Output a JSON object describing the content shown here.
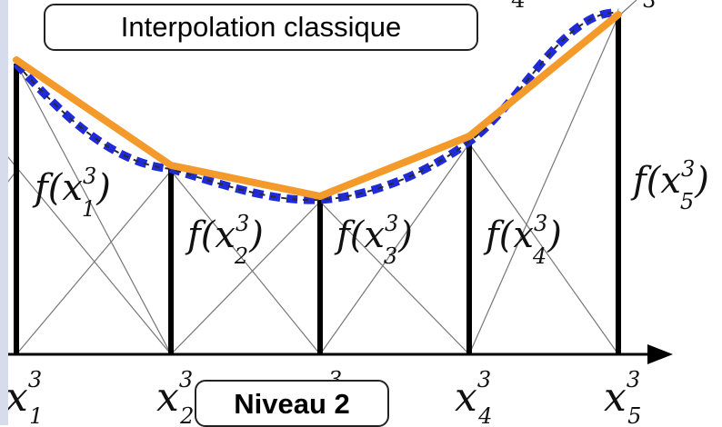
{
  "labels": {
    "title": "Interpolation classique",
    "level": "Niveau 2"
  },
  "nodes": [
    {
      "x": "x",
      "sup": "3",
      "sub": "1",
      "f": "f(x",
      "f_close": ")"
    },
    {
      "x": "x",
      "sup": "3",
      "sub": "2",
      "f": "f(x",
      "f_close": ")"
    },
    {
      "x": "x",
      "sup": "3",
      "sub": "3",
      "f": "f(x",
      "f_close": ")"
    },
    {
      "x": "x",
      "sup": "3",
      "sub": "4",
      "f": "f(x",
      "f_close": ")"
    },
    {
      "x": "x",
      "sup": "3",
      "sub": "5",
      "f": "f(x",
      "f_close": ")"
    }
  ],
  "colors": {
    "linear_interpolation": "#f39a2a",
    "smooth_curve": "#1f2bd9",
    "stems": "#000000",
    "hat_lines": "#777777",
    "left_strip": "#d7dcec"
  },
  "line_styles": {
    "linear_interpolation": "solid",
    "smooth_curve": "dotted-dashed"
  }
}
